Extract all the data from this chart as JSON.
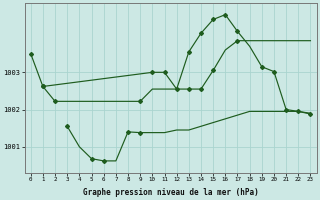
{
  "xlabel": "Graphe pression niveau de la mer (hPa)",
  "background_color": "#cce8e4",
  "grid_color": "#aad4cf",
  "line_color": "#1e5c1e",
  "x_ticks": [
    0,
    1,
    2,
    3,
    4,
    5,
    6,
    7,
    8,
    9,
    10,
    11,
    12,
    13,
    14,
    15,
    16,
    17,
    18,
    19,
    20,
    21,
    22,
    23
  ],
  "ylim": [
    1000.3,
    1004.85
  ],
  "yticks": [
    1001,
    1002,
    1003
  ],
  "series1_x": [
    0,
    1,
    10,
    11,
    12,
    13,
    14,
    15,
    16,
    17,
    18,
    19,
    20,
    21,
    22,
    23
  ],
  "series1_y": [
    1003.5,
    1002.62,
    1003.0,
    1003.0,
    1002.55,
    1003.55,
    1004.05,
    1004.42,
    1004.55,
    1004.1,
    1003.7,
    1003.15,
    1003.02,
    1002.0,
    1001.95,
    1001.88
  ],
  "series2_x": [
    1,
    2,
    3,
    4,
    5,
    6,
    7,
    8,
    9,
    10,
    11,
    12,
    13,
    14,
    15,
    16,
    17,
    18,
    19,
    20,
    21,
    22,
    23
  ],
  "series2_y": [
    1002.62,
    1002.22,
    1002.22,
    1002.22,
    1002.22,
    1002.22,
    1002.22,
    1002.22,
    1002.22,
    1002.55,
    1002.55,
    1002.55,
    1002.55,
    1002.55,
    1003.05,
    1003.6,
    1003.85,
    1003.85,
    1003.85,
    1003.85,
    1003.85,
    1003.85,
    1003.85
  ],
  "series3_x": [
    3,
    4,
    5,
    6,
    7,
    8,
    9,
    10,
    11,
    12,
    13,
    14,
    15,
    16,
    17,
    18,
    19,
    20,
    21,
    22,
    23
  ],
  "series3_y": [
    1001.55,
    1001.0,
    1000.68,
    1000.62,
    1000.62,
    1001.4,
    1001.38,
    1001.38,
    1001.38,
    1001.45,
    1001.45,
    1001.55,
    1001.65,
    1001.75,
    1001.85,
    1001.95,
    1001.95,
    1001.95,
    1001.95,
    1001.95,
    1001.9
  ],
  "marker_x1": [
    0,
    1,
    10,
    11,
    13,
    14,
    15,
    16,
    17,
    19,
    20,
    21,
    22,
    23
  ],
  "marker_y1": [
    1003.5,
    1002.62,
    1003.0,
    1003.0,
    1003.55,
    1004.05,
    1004.42,
    1004.55,
    1004.1,
    1003.15,
    1003.02,
    1002.0,
    1001.95,
    1001.88
  ],
  "marker_x2": [
    1,
    2,
    9,
    12,
    13,
    14,
    15,
    17
  ],
  "marker_y2": [
    1002.62,
    1002.22,
    1002.22,
    1002.55,
    1002.55,
    1002.55,
    1003.05,
    1003.85
  ],
  "marker_x3": [
    3,
    5,
    6,
    8,
    9
  ],
  "marker_y3": [
    1001.55,
    1000.68,
    1000.62,
    1001.4,
    1001.38
  ]
}
